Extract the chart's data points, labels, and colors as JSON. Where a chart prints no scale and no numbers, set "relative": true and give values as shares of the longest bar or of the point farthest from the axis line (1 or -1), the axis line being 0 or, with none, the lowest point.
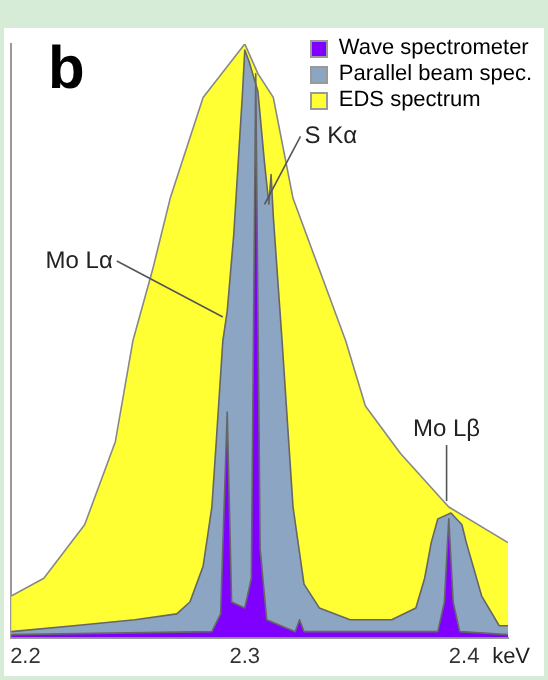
{
  "chart_data": {
    "type": "area",
    "title": "b",
    "xlabel": "keV",
    "relative": true,
    "xlim": [
      2.1935,
      2.42
    ],
    "xticks": [
      2.2,
      2.3,
      2.4
    ],
    "legend": "top right",
    "grid": false,
    "marker": "none",
    "series": [
      {
        "name": "Wave spectrometer",
        "color": "#8000ff",
        "x": [
          2.1935,
          2.285,
          2.289,
          2.292,
          2.294,
          2.3,
          2.303,
          2.305,
          2.307,
          2.31,
          2.323,
          2.325,
          2.327,
          2.388,
          2.391,
          2.393,
          2.395,
          2.398,
          2.42
        ],
        "values": [
          0.005,
          0.01,
          0.04,
          0.38,
          0.06,
          0.05,
          0.1,
          0.95,
          0.15,
          0.03,
          0.01,
          0.03,
          0.01,
          0.01,
          0.06,
          0.2,
          0.06,
          0.01,
          0.005
        ]
      },
      {
        "name": "Parallel beam spec.",
        "color": "#8ca5c2",
        "x": [
          2.1935,
          2.222,
          2.25,
          2.269,
          2.275,
          2.281,
          2.285,
          2.287,
          2.29,
          2.292,
          2.295,
          2.299,
          2.3,
          2.302,
          2.306,
          2.309,
          2.311,
          2.312,
          2.313,
          2.317,
          2.322,
          2.327,
          2.334,
          2.348,
          2.367,
          2.378,
          2.382,
          2.385,
          2.388,
          2.394,
          2.399,
          2.401,
          2.408,
          2.416,
          2.42
        ],
        "values": [
          0.01,
          0.02,
          0.03,
          0.04,
          0.06,
          0.12,
          0.22,
          0.33,
          0.5,
          0.55,
          0.68,
          0.92,
          0.99,
          0.97,
          0.92,
          0.8,
          0.73,
          0.78,
          0.71,
          0.5,
          0.22,
          0.09,
          0.05,
          0.03,
          0.03,
          0.05,
          0.1,
          0.16,
          0.2,
          0.21,
          0.19,
          0.16,
          0.07,
          0.02,
          0.02
        ]
      },
      {
        "name": "EDS spectrum",
        "color": "#ffff33",
        "x": [
          2.1935,
          2.2084,
          2.227,
          2.241,
          2.249,
          2.258,
          2.266,
          2.281,
          2.3,
          2.306,
          2.313,
          2.322,
          2.334,
          2.346,
          2.355,
          2.371,
          2.393,
          2.42
        ],
        "values": [
          0.07,
          0.1,
          0.19,
          0.33,
          0.5,
          0.62,
          0.74,
          0.91,
          1.0,
          0.95,
          0.91,
          0.74,
          0.62,
          0.5,
          0.39,
          0.31,
          0.22,
          0.16
        ]
      }
    ],
    "annotations": [
      {
        "text": "S Kα",
        "x": 2.309,
        "y": 0.73
      },
      {
        "text": "Mo Lα",
        "x": 2.29,
        "y": 0.54
      },
      {
        "text": "Mo Lβ",
        "x": 2.392,
        "y": 0.23
      }
    ]
  }
}
